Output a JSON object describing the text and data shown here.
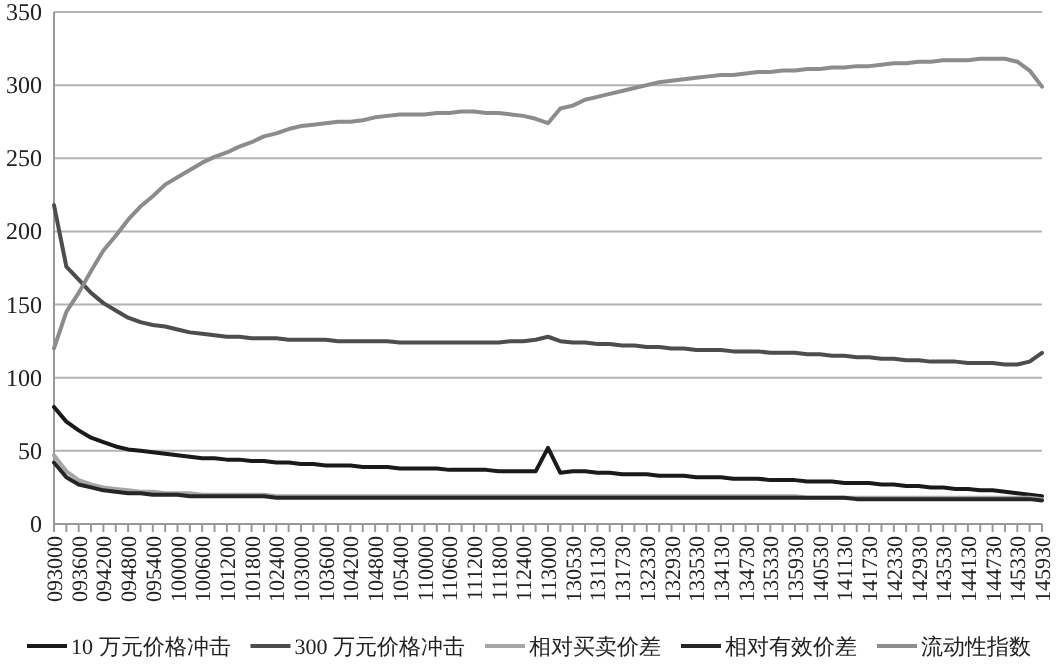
{
  "chart_data": {
    "type": "line",
    "categories": [
      "093000",
      null,
      "093600",
      null,
      "094200",
      null,
      "094800",
      null,
      "095400",
      null,
      "100000",
      null,
      "100600",
      null,
      "101200",
      null,
      "101800",
      null,
      "102400",
      null,
      "103000",
      null,
      "103600",
      null,
      "104200",
      null,
      "104800",
      null,
      "105400",
      null,
      "110000",
      null,
      "110600",
      null,
      "111200",
      null,
      "111800",
      null,
      "112400",
      null,
      "113000",
      null,
      "130530",
      null,
      "131130",
      null,
      "131730",
      null,
      "132330",
      null,
      "132930",
      null,
      "133530",
      null,
      "134130",
      null,
      "134730",
      null,
      "135330",
      null,
      "135930",
      null,
      "140530",
      null,
      "141130",
      null,
      "141730",
      null,
      "142330",
      null,
      "142930",
      null,
      "143530",
      null,
      "144130",
      null,
      "144730",
      null,
      "145330",
      null,
      "145930"
    ],
    "series": [
      {
        "name": "10 万元价格冲击",
        "color": "#1a1a1a",
        "values": [
          80,
          70,
          64,
          59,
          56,
          53,
          51,
          50,
          49,
          48,
          47,
          46,
          45,
          45,
          44,
          44,
          43,
          43,
          42,
          42,
          41,
          41,
          40,
          40,
          40,
          39,
          39,
          39,
          38,
          38,
          38,
          38,
          37,
          37,
          37,
          37,
          36,
          36,
          36,
          36,
          52,
          35,
          36,
          36,
          35,
          35,
          34,
          34,
          34,
          33,
          33,
          33,
          32,
          32,
          32,
          31,
          31,
          31,
          30,
          30,
          30,
          29,
          29,
          29,
          28,
          28,
          28,
          27,
          27,
          26,
          26,
          25,
          25,
          24,
          24,
          23,
          23,
          22,
          21,
          20,
          19
        ]
      },
      {
        "name": "300 万元价格冲击",
        "color": "#4d4d4d",
        "values": [
          218,
          176,
          167,
          158,
          151,
          146,
          141,
          138,
          136,
          135,
          133,
          131,
          130,
          129,
          128,
          128,
          127,
          127,
          127,
          126,
          126,
          126,
          126,
          125,
          125,
          125,
          125,
          125,
          124,
          124,
          124,
          124,
          124,
          124,
          124,
          124,
          124,
          125,
          125,
          126,
          128,
          125,
          124,
          124,
          123,
          123,
          122,
          122,
          121,
          121,
          120,
          120,
          119,
          119,
          119,
          118,
          118,
          118,
          117,
          117,
          117,
          116,
          116,
          115,
          115,
          114,
          114,
          113,
          113,
          112,
          112,
          111,
          111,
          111,
          110,
          110,
          110,
          109,
          109,
          111,
          117
        ]
      },
      {
        "name": "相对买卖价差",
        "color": "#a6a6a6",
        "values": [
          47,
          36,
          30,
          27,
          25,
          24,
          23,
          22,
          22,
          21,
          21,
          21,
          20,
          20,
          20,
          20,
          20,
          20,
          19,
          19,
          19,
          19,
          19,
          19,
          19,
          19,
          19,
          19,
          19,
          19,
          19,
          19,
          19,
          19,
          19,
          19,
          19,
          19,
          19,
          19,
          19,
          19,
          19,
          19,
          19,
          19,
          19,
          19,
          19,
          19,
          19,
          19,
          19,
          19,
          19,
          19,
          19,
          19,
          19,
          19,
          19,
          18,
          18,
          18,
          18,
          18,
          18,
          18,
          18,
          18,
          18,
          18,
          18,
          18,
          18,
          18,
          18,
          18,
          18,
          18,
          17
        ]
      },
      {
        "name": "相对有效价差",
        "color": "#262626",
        "values": [
          42,
          32,
          27,
          25,
          23,
          22,
          21,
          21,
          20,
          20,
          20,
          19,
          19,
          19,
          19,
          19,
          19,
          19,
          18,
          18,
          18,
          18,
          18,
          18,
          18,
          18,
          18,
          18,
          18,
          18,
          18,
          18,
          18,
          18,
          18,
          18,
          18,
          18,
          18,
          18,
          18,
          18,
          18,
          18,
          18,
          18,
          18,
          18,
          18,
          18,
          18,
          18,
          18,
          18,
          18,
          18,
          18,
          18,
          18,
          18,
          18,
          18,
          18,
          18,
          18,
          17,
          17,
          17,
          17,
          17,
          17,
          17,
          17,
          17,
          17,
          17,
          17,
          17,
          17,
          17,
          16
        ]
      },
      {
        "name": "流动性指数",
        "color": "#8c8c8c",
        "values": [
          120,
          145,
          158,
          173,
          187,
          197,
          208,
          217,
          224,
          232,
          237,
          242,
          247,
          251,
          254,
          258,
          261,
          265,
          267,
          270,
          272,
          273,
          274,
          275,
          275,
          276,
          278,
          279,
          280,
          280,
          280,
          281,
          281,
          282,
          282,
          281,
          281,
          280,
          279,
          277,
          274,
          284,
          286,
          290,
          292,
          294,
          296,
          298,
          300,
          302,
          303,
          304,
          305,
          306,
          307,
          307,
          308,
          309,
          309,
          310,
          310,
          311,
          311,
          312,
          312,
          313,
          313,
          314,
          315,
          315,
          316,
          316,
          317,
          317,
          317,
          318,
          318,
          318,
          316,
          310,
          299
        ]
      }
    ],
    "ylim": [
      0,
      350
    ],
    "yticks": [
      0,
      50,
      100,
      150,
      200,
      250,
      300,
      350
    ],
    "grid": "y",
    "legend": "bottom"
  }
}
